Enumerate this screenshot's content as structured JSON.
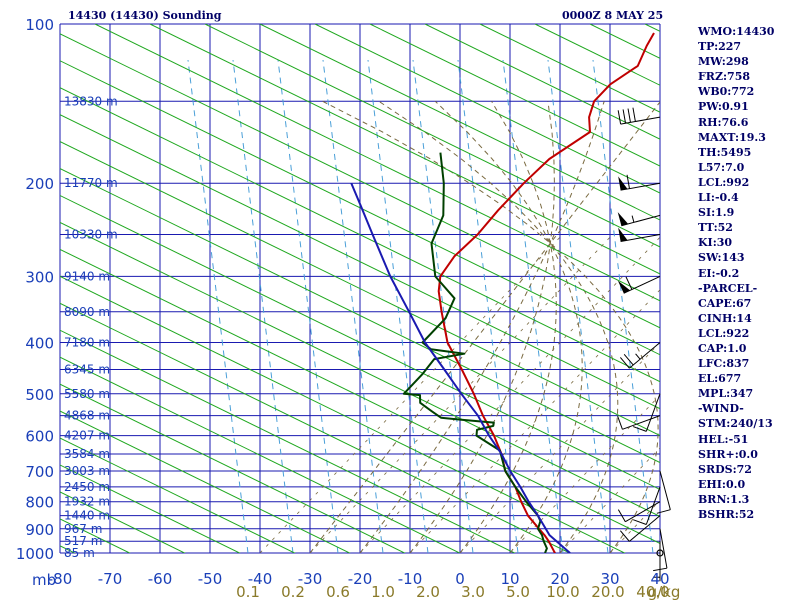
{
  "header": {
    "station": "14430 (14430) Sounding",
    "time": "0000Z  8 MAY 25"
  },
  "colors": {
    "grid": "#1a1ab0",
    "dry_adiabat": "#1fa81f",
    "moist_adiabat": "#7a6a40",
    "mixing_ratio": "#4a9fd8",
    "temperature": "#c00000",
    "dewpoint": "#004000",
    "parcel": "#1a1ab0",
    "label_blue": "#1a3fb8",
    "label_olive": "#8a7a2a"
  },
  "chart_data": {
    "type": "skew-t",
    "pressure_axis": {
      "scale": "log",
      "range": [
        1000,
        100
      ],
      "ticks": [
        100,
        200,
        300,
        400,
        500,
        600,
        700,
        800,
        900,
        1000
      ],
      "unit_label": "mb"
    },
    "temperature_axis": {
      "range": [
        -80,
        40
      ],
      "ticks": [
        -80,
        -70,
        -60,
        -50,
        -40,
        -30,
        -20,
        -10,
        0,
        10,
        20,
        30,
        40
      ]
    },
    "mixing_ratio_ticks": [
      "0.1",
      "0.2",
      "0.6",
      "1.0",
      "2.0",
      "3.0",
      "5.0",
      "10.0",
      "20.0",
      "40.0"
    ],
    "mixing_ratio_unit": "g/kg",
    "height_labels": [
      {
        "p": 140,
        "label": "13830 m"
      },
      {
        "p": 200,
        "label": "11770 m"
      },
      {
        "p": 250,
        "label": "10330 m"
      },
      {
        "p": 300,
        "label": "9140 m"
      },
      {
        "p": 350,
        "label": "8090 m"
      },
      {
        "p": 400,
        "label": "7180 m"
      },
      {
        "p": 450,
        "label": "6345 m"
      },
      {
        "p": 500,
        "label": "5580 m"
      },
      {
        "p": 550,
        "label": "4868 m"
      },
      {
        "p": 600,
        "label": "4207 m"
      },
      {
        "p": 650,
        "label": "3584 m"
      },
      {
        "p": 700,
        "label": "3003 m"
      },
      {
        "p": 750,
        "label": "2450 m"
      },
      {
        "p": 800,
        "label": "1932 m"
      },
      {
        "p": 850,
        "label": "1440 m"
      },
      {
        "p": 900,
        "label": "967 m"
      },
      {
        "p": 950,
        "label": "517 m"
      },
      {
        "p": 1000,
        "label": "85 m"
      }
    ],
    "series": [
      {
        "name": "",
        "role": "temperature",
        "points": [
          [
            1000,
            19.0
          ],
          [
            990,
            18.3
          ],
          [
            950,
            15.5
          ],
          [
            925,
            13.5
          ],
          [
            900,
            11.2
          ],
          [
            850,
            6.5
          ],
          [
            800,
            2.5
          ],
          [
            750,
            -1.5
          ],
          [
            700,
            -6.5
          ],
          [
            650,
            -10.5
          ],
          [
            600,
            -15.5
          ],
          [
            550,
            -21.5
          ],
          [
            500,
            -27.5
          ],
          [
            450,
            -34.5
          ],
          [
            400,
            -42.5
          ],
          [
            350,
            -49.5
          ],
          [
            320,
            -54
          ],
          [
            300,
            -56.5
          ],
          [
            275,
            -57.5
          ],
          [
            250,
            -57
          ],
          [
            225,
            -57.5
          ],
          [
            200,
            -57.5
          ],
          [
            180,
            -57
          ],
          [
            160,
            -54
          ],
          [
            150,
            -57
          ],
          [
            140,
            -59
          ],
          [
            130,
            -59
          ],
          [
            120,
            -57
          ],
          [
            110,
            -59
          ],
          [
            104,
            -60
          ]
        ]
      },
      {
        "name": "",
        "role": "dewpoint",
        "points": [
          [
            1000,
            17.0
          ],
          [
            980,
            16.5
          ],
          [
            950,
            14.5
          ],
          [
            925,
            13.0
          ],
          [
            900,
            11.0
          ],
          [
            870,
            10.0
          ],
          [
            850,
            8.5
          ],
          [
            800,
            3.5
          ],
          [
            750,
            -1.5
          ],
          [
            700,
            -6.5
          ],
          [
            640,
            -11.5
          ],
          [
            600,
            -19.0
          ],
          [
            585,
            -20.0
          ],
          [
            575,
            -17.5
          ],
          [
            567,
            -18.0
          ],
          [
            560,
            -25.0
          ],
          [
            555,
            -29.5
          ],
          [
            540,
            -32.5
          ],
          [
            520,
            -36.5
          ],
          [
            503,
            -38.0
          ],
          [
            500,
            -41.5
          ],
          [
            460,
            -41.5
          ],
          [
            430,
            -42.0
          ],
          [
            420,
            -37.0
          ],
          [
            412,
            -44.5
          ],
          [
            400,
            -47.5
          ],
          [
            360,
            -47.5
          ],
          [
            330,
            -49.5
          ],
          [
            300,
            -57.5
          ],
          [
            260,
            -64.5
          ],
          [
            230,
            -67.5
          ],
          [
            200,
            -73.5
          ],
          [
            175,
            -80.0
          ]
        ]
      },
      {
        "name": "",
        "role": "parcel",
        "points": [
          [
            1000,
            22.0
          ],
          [
            925,
            14.5
          ],
          [
            850,
            8.5
          ],
          [
            800,
            4.0
          ],
          [
            750,
            -0.5
          ],
          [
            700,
            -5.5
          ],
          [
            650,
            -10.5
          ],
          [
            600,
            -16.5
          ],
          [
            550,
            -22.5
          ],
          [
            500,
            -30.0
          ],
          [
            450,
            -38.0
          ],
          [
            400,
            -47.0
          ],
          [
            350,
            -56.0
          ],
          [
            300,
            -66.5
          ],
          [
            250,
            -78.0
          ],
          [
            220,
            -86.0
          ],
          [
            200,
            -92.0
          ]
        ]
      }
    ],
    "wind_barbs": [
      {
        "p": 1000,
        "calm": true
      },
      {
        "p": 950,
        "dir": 180,
        "speed": 5
      },
      {
        "p": 900,
        "dir": 170,
        "speed": 10
      },
      {
        "p": 850,
        "dir": 230,
        "speed": 10
      },
      {
        "p": 800,
        "dir": 240,
        "speed": 10
      },
      {
        "p": 750,
        "dir": 200,
        "speed": 10
      },
      {
        "p": 700,
        "dir": 165,
        "speed": 10
      },
      {
        "p": 500,
        "dir": 200,
        "speed": 10
      },
      {
        "p": 550,
        "dir": 250,
        "speed": 10
      },
      {
        "p": 400,
        "dir": 230,
        "speed": 25
      },
      {
        "p": 300,
        "dir": 245,
        "speed": 60
      },
      {
        "p": 250,
        "dir": 260,
        "speed": 50
      },
      {
        "p": 230,
        "dir": 255,
        "speed": 55
      },
      {
        "p": 200,
        "dir": 260,
        "speed": 60
      },
      {
        "p": 150,
        "dir": 260,
        "speed": 40
      }
    ]
  },
  "stats": [
    "WMO:14430",
    "TP:227",
    "MW:298",
    "FRZ:758",
    "WB0:772",
    "PW:0.91",
    "RH:76.6",
    "MAXT:19.3",
    "TH:5495",
    "L57:7.0",
    "LCL:992",
    "LI:-0.4",
    "SI:1.9",
    "TT:52",
    "KI:30",
    "SW:143",
    "EI:-0.2",
    "-PARCEL-",
    "CAPE:67",
    "CINH:14",
    "LCL:922",
    "CAP:1.0",
    "LFC:837",
    "EL:677",
    "MPL:347",
    "-WIND-",
    "STM:240/13",
    "HEL:-51",
    "SHR+:0.0",
    "SRDS:72",
    "EHI:0.0",
    "BRN:1.3",
    "BSHR:52"
  ]
}
